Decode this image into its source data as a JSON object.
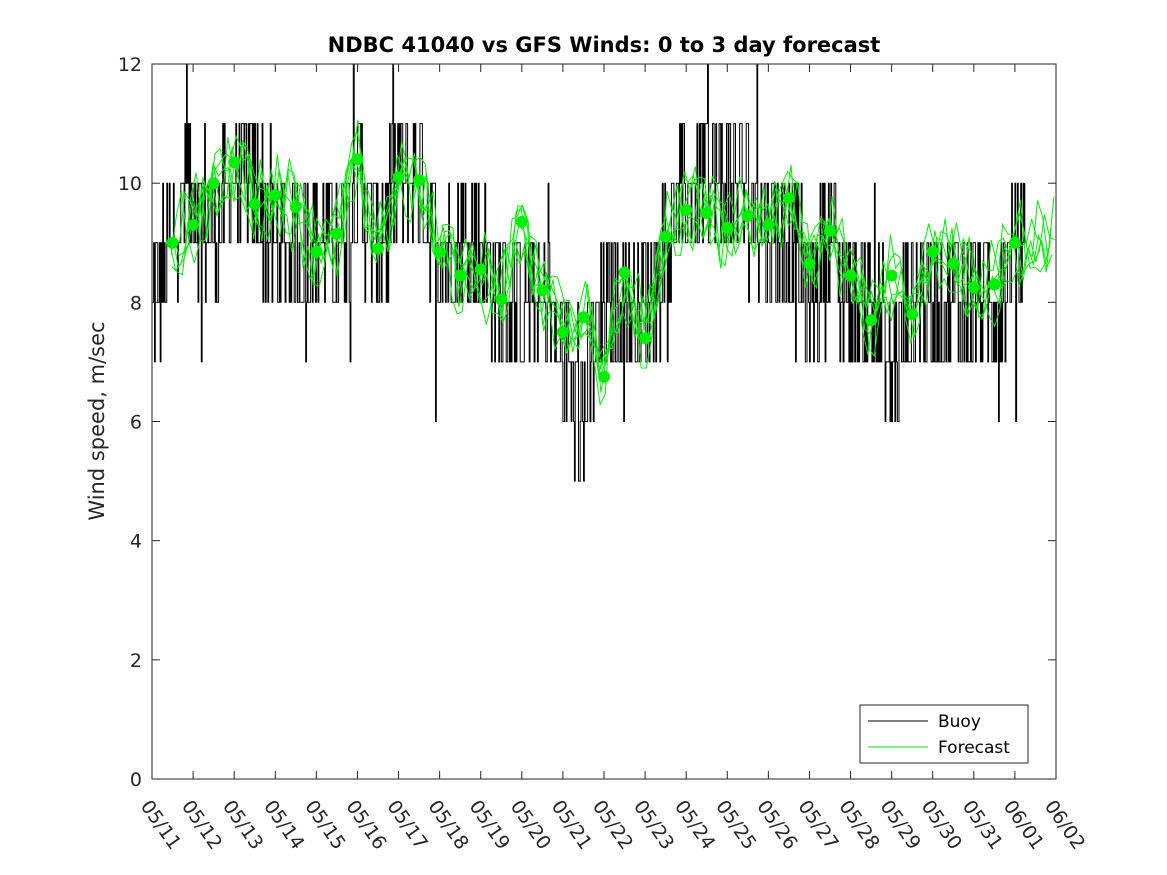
{
  "chart_data": {
    "type": "line",
    "title": "NDBC 41040 vs GFS Winds: 0 to 3 day forecast",
    "xlabel": "",
    "ylabel": "Wind speed, m/sec",
    "xlim": [
      "05/11",
      "06/02"
    ],
    "ylim": [
      0,
      12
    ],
    "x_ticks": [
      "05/11",
      "05/12",
      "05/13",
      "05/14",
      "05/15",
      "05/16",
      "05/17",
      "05/18",
      "05/19",
      "05/20",
      "05/21",
      "05/22",
      "05/23",
      "05/24",
      "05/25",
      "05/26",
      "05/27",
      "05/28",
      "05/29",
      "05/30",
      "05/31",
      "06/01",
      "06/02"
    ],
    "y_ticks": [
      "0",
      "2",
      "4",
      "6",
      "8",
      "10",
      "12"
    ],
    "grid": false,
    "legend": {
      "position": "bottom-right",
      "entries": [
        "Buoy",
        "Forecast"
      ]
    },
    "colors": {
      "buoy": "#000000",
      "forecast": "#00ee00",
      "marker": "#00ee00"
    },
    "series": [
      {
        "name": "Buoy",
        "color": "#000000",
        "x": [
          "05/11",
          "05/11.5",
          "05/12",
          "05/12.5",
          "05/13",
          "05/13.5",
          "05/14",
          "05/14.5",
          "05/15",
          "05/15.5",
          "05/16",
          "05/16.5",
          "05/17",
          "05/17.5",
          "05/18",
          "05/18.5",
          "05/19",
          "05/19.5",
          "05/20",
          "05/20.5",
          "05/21",
          "05/21.5",
          "05/22",
          "05/22.5",
          "05/23",
          "05/23.5",
          "05/24",
          "05/24.5",
          "05/25",
          "05/25.5",
          "05/26",
          "05/26.5",
          "05/27",
          "05/27.5",
          "05/28",
          "05/28.5",
          "05/29",
          "05/29.5",
          "05/30",
          "05/30.5",
          "05/31",
          "05/31.5",
          "06/01",
          "06/01.25"
        ],
        "y": [
          8,
          9,
          10,
          9,
          10,
          10,
          9,
          9,
          9,
          9,
          10,
          9,
          10,
          10,
          9,
          9,
          9,
          8,
          8,
          8,
          7,
          6,
          8,
          8,
          8,
          9,
          10,
          10,
          10,
          10,
          9,
          9,
          8,
          9,
          8,
          8,
          7,
          8,
          8,
          8,
          8,
          8,
          9,
          9
        ]
      },
      {
        "name": "Forecast",
        "color": "#00ee00",
        "x": [
          "05/11.5",
          "05/12",
          "05/12.5",
          "05/13",
          "05/13.5",
          "05/14",
          "05/14.5",
          "05/15",
          "05/15.5",
          "05/16",
          "05/16.5",
          "05/17",
          "05/17.5",
          "05/18",
          "05/18.5",
          "05/19",
          "05/19.5",
          "05/20",
          "05/20.5",
          "05/21",
          "05/21.5",
          "05/22",
          "05/22.5",
          "05/23",
          "05/23.5",
          "05/24",
          "05/24.5",
          "05/25",
          "05/25.5",
          "05/26",
          "05/26.5",
          "05/27",
          "05/27.5",
          "05/28",
          "05/28.5",
          "05/29",
          "05/29.5",
          "05/30",
          "05/30.5",
          "05/31",
          "05/31.5",
          "06/01"
        ],
        "y": [
          9.0,
          9.3,
          10.0,
          10.35,
          9.65,
          9.8,
          9.6,
          8.85,
          9.15,
          10.4,
          8.9,
          10.1,
          10.05,
          8.85,
          8.45,
          8.55,
          8.05,
          9.35,
          8.2,
          7.5,
          7.75,
          6.75,
          8.5,
          7.4,
          9.1,
          9.55,
          9.5,
          9.25,
          9.45,
          9.3,
          9.75,
          8.65,
          9.2,
          8.45,
          7.7,
          8.45,
          7.8,
          8.85,
          8.65,
          8.25,
          8.3,
          9.0
        ]
      }
    ]
  }
}
